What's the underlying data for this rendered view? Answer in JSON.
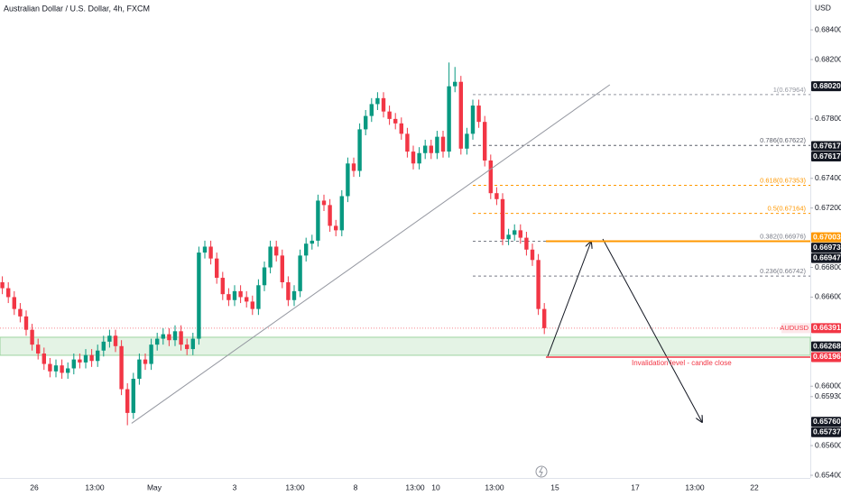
{
  "chart_data": {
    "type": "candlestick",
    "title": "Australian Dollar / U.S. Dollar, 4h, FXCM",
    "currency": "USD",
    "up_color": "#089981",
    "down_color": "#f23645",
    "open": [
      0.667,
      0.6666,
      0.666,
      0.6652,
      0.6647,
      0.6638,
      0.6628,
      0.6622,
      0.6615,
      0.661,
      0.6614,
      0.6609,
      0.6612,
      0.6618,
      0.6616,
      0.6621,
      0.6617,
      0.6624,
      0.663,
      0.6634,
      0.6627,
      0.6598,
      0.6582,
      0.6605,
      0.6618,
      0.6615,
      0.6628,
      0.6632,
      0.6635,
      0.6631,
      0.6637,
      0.6628,
      0.6625,
      0.6632,
      0.669,
      0.6694,
      0.6686,
      0.6673,
      0.6662,
      0.6658,
      0.6664,
      0.666,
      0.6657,
      0.6652,
      0.6668,
      0.668,
      0.6694,
      0.6688,
      0.667,
      0.6658,
      0.6664,
      0.6688,
      0.6696,
      0.6698,
      0.6725,
      0.6722,
      0.6708,
      0.6705,
      0.6728,
      0.675,
      0.6745,
      0.6773,
      0.6782,
      0.679,
      0.6794,
      0.6785,
      0.678,
      0.6777,
      0.677,
      0.6758,
      0.675,
      0.6757,
      0.6762,
      0.6757,
      0.6768,
      0.6758,
      0.6802,
      0.6805,
      0.676,
      0.677,
      0.6789,
      0.6778,
      0.6752,
      0.673,
      0.6726,
      0.6699,
      0.6702,
      0.6705,
      0.67,
      0.6692,
      0.6685,
      0.6652
    ],
    "high": [
      0.6674,
      0.667,
      0.6664,
      0.6656,
      0.6651,
      0.6642,
      0.6632,
      0.6626,
      0.6619,
      0.6618,
      0.6618,
      0.6616,
      0.6622,
      0.6622,
      0.6625,
      0.6625,
      0.6628,
      0.6634,
      0.6638,
      0.6638,
      0.6631,
      0.6602,
      0.6609,
      0.6622,
      0.6622,
      0.6632,
      0.6636,
      0.6639,
      0.6639,
      0.6641,
      0.6641,
      0.6632,
      0.6636,
      0.6694,
      0.6698,
      0.6698,
      0.669,
      0.6677,
      0.6666,
      0.6668,
      0.6668,
      0.6664,
      0.6661,
      0.6672,
      0.6684,
      0.6698,
      0.6698,
      0.6692,
      0.6674,
      0.6668,
      0.6692,
      0.67,
      0.6702,
      0.6729,
      0.6729,
      0.6726,
      0.6712,
      0.6732,
      0.6754,
      0.6754,
      0.6777,
      0.6786,
      0.6794,
      0.6798,
      0.6798,
      0.6789,
      0.6784,
      0.6781,
      0.6774,
      0.6762,
      0.6761,
      0.6766,
      0.6766,
      0.6772,
      0.6772,
      0.6818,
      0.6815,
      0.6809,
      0.6774,
      0.6793,
      0.6793,
      0.6782,
      0.6756,
      0.6734,
      0.673,
      0.6706,
      0.6709,
      0.6709,
      0.6704,
      0.6696,
      0.6689,
      0.6656
    ],
    "low": [
      0.6662,
      0.6656,
      0.6648,
      0.6643,
      0.6634,
      0.6624,
      0.6618,
      0.6611,
      0.6606,
      0.6606,
      0.6605,
      0.6605,
      0.6608,
      0.6612,
      0.6612,
      0.6613,
      0.6613,
      0.662,
      0.6626,
      0.6623,
      0.6594,
      0.65737,
      0.6578,
      0.6601,
      0.6611,
      0.6611,
      0.6624,
      0.6628,
      0.6627,
      0.6627,
      0.6624,
      0.6621,
      0.6621,
      0.6628,
      0.6686,
      0.6682,
      0.6669,
      0.6658,
      0.6654,
      0.6654,
      0.6656,
      0.6653,
      0.6648,
      0.6648,
      0.6664,
      0.6676,
      0.6684,
      0.6666,
      0.6654,
      0.6654,
      0.666,
      0.6684,
      0.6692,
      0.6694,
      0.6718,
      0.6704,
      0.6701,
      0.6701,
      0.6724,
      0.6741,
      0.6741,
      0.6769,
      0.6778,
      0.6786,
      0.6781,
      0.6776,
      0.6773,
      0.6766,
      0.6754,
      0.6746,
      0.6746,
      0.6753,
      0.6753,
      0.6753,
      0.6754,
      0.6754,
      0.6798,
      0.6756,
      0.6756,
      0.6766,
      0.6774,
      0.6748,
      0.6726,
      0.6722,
      0.6695,
      0.6695,
      0.6698,
      0.6696,
      0.6688,
      0.6681,
      0.6648,
      0.66351
    ],
    "close": [
      0.6666,
      0.666,
      0.6652,
      0.6647,
      0.6638,
      0.6628,
      0.6622,
      0.6615,
      0.661,
      0.6614,
      0.6609,
      0.6612,
      0.6618,
      0.6616,
      0.6621,
      0.6617,
      0.6624,
      0.663,
      0.6634,
      0.6627,
      0.6598,
      0.6582,
      0.6605,
      0.6618,
      0.6615,
      0.6628,
      0.6632,
      0.6635,
      0.6631,
      0.6637,
      0.6628,
      0.6625,
      0.6632,
      0.669,
      0.6694,
      0.6686,
      0.6673,
      0.6662,
      0.6658,
      0.6664,
      0.666,
      0.6657,
      0.6652,
      0.6668,
      0.668,
      0.6694,
      0.6688,
      0.667,
      0.6658,
      0.6664,
      0.6688,
      0.6696,
      0.6698,
      0.6725,
      0.6722,
      0.6708,
      0.6705,
      0.6728,
      0.675,
      0.6745,
      0.6773,
      0.6782,
      0.679,
      0.6794,
      0.6785,
      0.678,
      0.6777,
      0.677,
      0.6758,
      0.675,
      0.6757,
      0.6762,
      0.6757,
      0.6768,
      0.6758,
      0.6802,
      0.6805,
      0.676,
      0.677,
      0.6789,
      0.6778,
      0.6752,
      0.673,
      0.6726,
      0.6699,
      0.6702,
      0.6705,
      0.67,
      0.6692,
      0.6685,
      0.6652,
      0.66391
    ],
    "xlabels": [
      "26",
      "13:00",
      "May",
      "3",
      "13:00",
      "8",
      "13:00",
      "10",
      "13:00",
      "15",
      "17",
      "13:00",
      "22"
    ],
    "ylim": [
      0.65382,
      0.68601
    ],
    "yticks": [
      {
        "value": 0.684,
        "label": "0.68400"
      },
      {
        "value": 0.682,
        "label": "0.68200"
      },
      {
        "value": 0.678,
        "label": "0.67800"
      },
      {
        "value": 0.674,
        "label": "0.67400"
      },
      {
        "value": 0.672,
        "label": "0.67200"
      },
      {
        "value": 0.668,
        "label": "0.66800"
      },
      {
        "value": 0.666,
        "label": "0.66600"
      },
      {
        "value": 0.66,
        "label": "0.66000"
      },
      {
        "value": 0.6593,
        "label": "0.65930"
      },
      {
        "value": 0.656,
        "label": "0.65600"
      },
      {
        "value": 0.654,
        "label": "0.65400"
      }
    ],
    "fib_start": 79,
    "fib_levels": [
      {
        "label": "1(0.67964)",
        "value": 0.67964,
        "color": "#9598a1"
      },
      {
        "label": "0.786(0.67622)",
        "value": 0.67622,
        "color": "#5d606b"
      },
      {
        "label": "0.618(0.67353)",
        "value": 0.67353,
        "color": "#ff9800"
      },
      {
        "label": "0.5(0.67164)",
        "value": 0.67164,
        "color": "#ff9800"
      },
      {
        "label": "0.382(0.66976)",
        "value": 0.66976,
        "color": "#787b86"
      },
      {
        "label": "0.236(0.66742)",
        "value": 0.66742,
        "color": "#787b86"
      }
    ],
    "resistance": {
      "value": 0.66976,
      "color": "#ff9800"
    },
    "support_zone": {
      "range": [
        0.6633,
        0.66208
      ],
      "color": "#4caf50"
    },
    "invalidation": {
      "text": "Invalidation level - candle close",
      "value": 0.66196,
      "color": "#f23645"
    },
    "trendline": {
      "x": [
        21.7,
        102
      ],
      "y": [
        0.6575,
        0.6803
      ]
    },
    "price_labels": [
      {
        "value": 0.6802,
        "label": "0.68020",
        "color": "#131722"
      },
      {
        "value": 0.67617,
        "label": "0.67617",
        "color": "#131722"
      },
      {
        "value": 0.67617,
        "label": "0.67617",
        "color": "#131722"
      },
      {
        "value": 0.67003,
        "label": "0.67003",
        "color": "#ff9800"
      },
      {
        "value": 0.66973,
        "label": "0.66973",
        "color": "#131722"
      },
      {
        "value": 0.66947,
        "label": "0.66947",
        "color": "#131722"
      },
      {
        "name": "AUDUSD",
        "value": 0.66391,
        "label": "0.66391",
        "color": "#f23645"
      },
      {
        "value": 0.66268,
        "label": "0.66268",
        "color": "#131722"
      },
      {
        "value": 0.66196,
        "label": "0.66196",
        "color": "#f23645"
      },
      {
        "value": 0.6576,
        "label": "0.65760",
        "color": "#131722"
      },
      {
        "value": 0.65737,
        "label": "0.65737",
        "color": "#131722"
      }
    ]
  }
}
